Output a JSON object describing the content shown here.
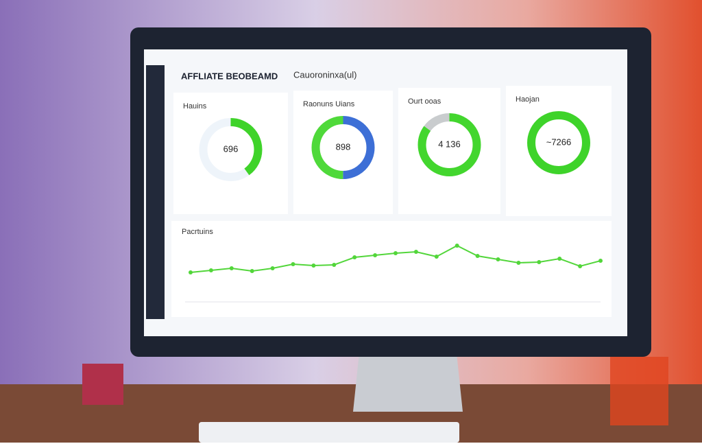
{
  "header": {
    "title": "AFFLIATE BEOBEAMD",
    "subtitle": "Cauoroninxa(ul)"
  },
  "cards": [
    {
      "title": "Hauins",
      "center": "696",
      "segments": [
        {
          "value": 40,
          "color": "#3fd32a"
        },
        {
          "value": 60,
          "color": "#eef4fa"
        }
      ]
    },
    {
      "title": "Raonuns Uians",
      "center": "898",
      "segments": [
        {
          "value": 50,
          "color": "#3d6fd6"
        },
        {
          "value": 50,
          "color": "#4fd93a"
        }
      ]
    },
    {
      "title": "Ourt ooas",
      "center": "4 136",
      "segments": [
        {
          "value": 85,
          "color": "#43d62e"
        },
        {
          "value": 15,
          "color": "#c9ccce"
        }
      ]
    },
    {
      "title": "Haojan",
      "center": "~7266",
      "segments": [
        {
          "value": 100,
          "color": "#3ed32a"
        }
      ]
    }
  ],
  "chart_data": {
    "type": "line",
    "title": "Pacrtuins",
    "color": "#52d63a",
    "values": [
      43,
      46,
      49,
      45,
      49,
      55,
      53,
      54,
      65,
      68,
      71,
      73,
      66,
      82,
      67,
      62,
      57,
      58,
      63,
      52,
      60
    ],
    "ylim": [
      0,
      100
    ]
  }
}
